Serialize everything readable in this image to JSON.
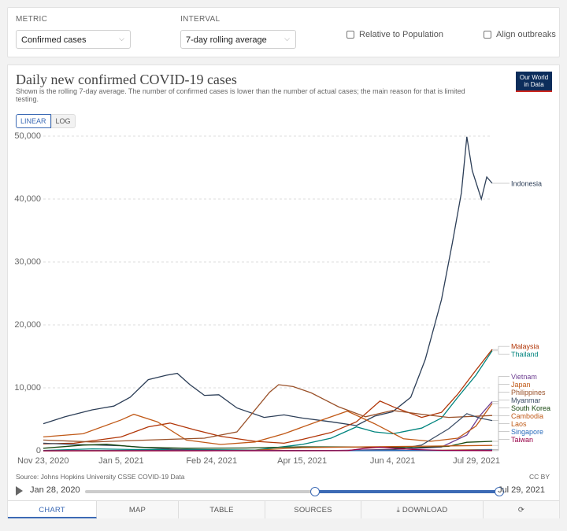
{
  "controls": {
    "metric_label": "METRIC",
    "metric_value": "Confirmed cases",
    "interval_label": "INTERVAL",
    "interval_value": "7-day rolling average",
    "relative_label": "Relative to Population",
    "align_label": "Align outbreaks"
  },
  "chart": {
    "title": "Daily new confirmed COVID-19 cases",
    "subtitle": "Shown is the rolling 7-day average. The number of confirmed cases is lower than the number of actual cases; the main reason for that is limited testing.",
    "logo_line1": "Our World",
    "logo_line2": "in Data",
    "linear_label": "LINEAR",
    "log_label": "LOG",
    "source": "Source: Johns Hopkins University CSSE COVID-19 Data",
    "license": "CC BY"
  },
  "timeline": {
    "start_label": "Jan 28, 2020",
    "end_label": "Jul 29, 2021",
    "selected_from": "Nov 23, 2020",
    "selected_to": "Jul 29, 2021"
  },
  "tabs": [
    "CHART",
    "MAP",
    "TABLE",
    "SOURCES",
    "DOWNLOAD",
    ""
  ],
  "chart_data": {
    "type": "line",
    "title": "Daily new confirmed COVID-19 cases",
    "xlabel": "",
    "ylabel": "",
    "x_ticks": [
      "Nov 23, 2020",
      "Jan 5, 2021",
      "Feb 24, 2021",
      "Apr 15, 2021",
      "Jun 4, 2021",
      "Jul 29, 2021"
    ],
    "y_ticks": [
      "0",
      "10,000",
      "20,000",
      "30,000",
      "40,000",
      "50,000"
    ],
    "ylim": [
      0,
      50000
    ],
    "xlim": [
      "2020-11-23",
      "2021-07-29"
    ],
    "grid": true,
    "legend": "right-end labels",
    "series": [
      {
        "name": "Indonesia",
        "color": "#2c3e57",
        "points": [
          [
            "2020-11-23",
            4300
          ],
          [
            "2020-12-05",
            5400
          ],
          [
            "2020-12-20",
            6500
          ],
          [
            "2021-01-01",
            7100
          ],
          [
            "2021-01-10",
            8500
          ],
          [
            "2021-01-20",
            11300
          ],
          [
            "2021-01-30",
            12000
          ],
          [
            "2021-02-05",
            12300
          ],
          [
            "2021-02-12",
            10500
          ],
          [
            "2021-02-20",
            8800
          ],
          [
            "2021-02-28",
            8900
          ],
          [
            "2021-03-10",
            6800
          ],
          [
            "2021-03-25",
            5300
          ],
          [
            "2021-04-05",
            5700
          ],
          [
            "2021-04-15",
            5200
          ],
          [
            "2021-05-01",
            4600
          ],
          [
            "2021-05-15",
            4000
          ],
          [
            "2021-05-25",
            5500
          ],
          [
            "2021-06-04",
            6200
          ],
          [
            "2021-06-14",
            8500
          ],
          [
            "2021-06-22",
            14500
          ],
          [
            "2021-07-01",
            24000
          ],
          [
            "2021-07-07",
            33000
          ],
          [
            "2021-07-12",
            41000
          ],
          [
            "2021-07-15",
            49900
          ],
          [
            "2021-07-18",
            44500
          ],
          [
            "2021-07-23",
            40000
          ],
          [
            "2021-07-26",
            43500
          ],
          [
            "2021-07-29",
            42500
          ]
        ]
      },
      {
        "name": "Malaysia",
        "color": "#b13507",
        "points": [
          [
            "2020-11-23",
            1100
          ],
          [
            "2020-12-10",
            1200
          ],
          [
            "2021-01-05",
            2200
          ],
          [
            "2021-01-20",
            3800
          ],
          [
            "2021-02-01",
            4400
          ],
          [
            "2021-02-15",
            3300
          ],
          [
            "2021-03-01",
            2300
          ],
          [
            "2021-03-20",
            1500
          ],
          [
            "2021-04-05",
            1200
          ],
          [
            "2021-04-15",
            1800
          ],
          [
            "2021-05-01",
            2900
          ],
          [
            "2021-05-15",
            4600
          ],
          [
            "2021-05-28",
            7900
          ],
          [
            "2021-06-05",
            6900
          ],
          [
            "2021-06-20",
            5300
          ],
          [
            "2021-07-01",
            6100
          ],
          [
            "2021-07-10",
            9000
          ],
          [
            "2021-07-20",
            12800
          ],
          [
            "2021-07-29",
            16100
          ]
        ]
      },
      {
        "name": "Thailand",
        "color": "#00847e",
        "points": [
          [
            "2020-11-23",
            50
          ],
          [
            "2020-12-20",
            300
          ],
          [
            "2021-01-10",
            200
          ],
          [
            "2021-02-10",
            200
          ],
          [
            "2021-03-20",
            100
          ],
          [
            "2021-04-15",
            1000
          ],
          [
            "2021-05-01",
            2000
          ],
          [
            "2021-05-15",
            3800
          ],
          [
            "2021-05-25",
            3000
          ],
          [
            "2021-06-04",
            2700
          ],
          [
            "2021-06-20",
            3600
          ],
          [
            "2021-07-01",
            5200
          ],
          [
            "2021-07-10",
            8500
          ],
          [
            "2021-07-20",
            12000
          ],
          [
            "2021-07-29",
            15900
          ]
        ]
      },
      {
        "name": "Vietnam",
        "color": "#6d3e91",
        "points": [
          [
            "2020-11-23",
            5
          ],
          [
            "2021-01-28",
            40
          ],
          [
            "2021-03-01",
            20
          ],
          [
            "2021-05-01",
            30
          ],
          [
            "2021-06-10",
            250
          ],
          [
            "2021-07-01",
            600
          ],
          [
            "2021-07-15",
            2500
          ],
          [
            "2021-07-22",
            5500
          ],
          [
            "2021-07-29",
            7800
          ]
        ]
      },
      {
        "name": "Japan",
        "color": "#c05917",
        "points": [
          [
            "2020-11-23",
            2200
          ],
          [
            "2020-12-15",
            2700
          ],
          [
            "2021-01-05",
            4900
          ],
          [
            "2021-01-12",
            5800
          ],
          [
            "2021-01-25",
            4600
          ],
          [
            "2021-02-10",
            1700
          ],
          [
            "2021-03-01",
            1000
          ],
          [
            "2021-03-20",
            1400
          ],
          [
            "2021-04-05",
            2700
          ],
          [
            "2021-04-25",
            4800
          ],
          [
            "2021-05-10",
            6300
          ],
          [
            "2021-05-25",
            4300
          ],
          [
            "2021-06-10",
            1900
          ],
          [
            "2021-06-25",
            1500
          ],
          [
            "2021-07-10",
            2000
          ],
          [
            "2021-07-20",
            3900
          ],
          [
            "2021-07-29",
            7500
          ]
        ]
      },
      {
        "name": "Philippines",
        "color": "#9a5129",
        "points": [
          [
            "2020-11-23",
            1700
          ],
          [
            "2020-12-20",
            1400
          ],
          [
            "2021-01-20",
            1700
          ],
          [
            "2021-02-20",
            2000
          ],
          [
            "2021-03-10",
            3000
          ],
          [
            "2021-03-28",
            9300
          ],
          [
            "2021-04-02",
            10500
          ],
          [
            "2021-04-10",
            10200
          ],
          [
            "2021-04-20",
            9200
          ],
          [
            "2021-05-05",
            7000
          ],
          [
            "2021-05-20",
            5400
          ],
          [
            "2021-06-04",
            6400
          ],
          [
            "2021-06-20",
            5800
          ],
          [
            "2021-07-05",
            5300
          ],
          [
            "2021-07-29",
            5600
          ]
        ]
      },
      {
        "name": "Myanmar",
        "color": "#3c4e66",
        "points": [
          [
            "2020-11-23",
            1200
          ],
          [
            "2020-12-10",
            1000
          ],
          [
            "2021-01-05",
            800
          ],
          [
            "2021-01-25",
            400
          ],
          [
            "2021-02-10",
            100
          ],
          [
            "2021-03-15",
            20
          ],
          [
            "2021-05-15",
            40
          ],
          [
            "2021-06-04",
            150
          ],
          [
            "2021-06-20",
            900
          ],
          [
            "2021-07-05",
            3500
          ],
          [
            "2021-07-15",
            5900
          ],
          [
            "2021-07-22",
            5200
          ],
          [
            "2021-07-29",
            4800
          ]
        ]
      },
      {
        "name": "South Korea",
        "color": "#18470f",
        "points": [
          [
            "2020-11-23",
            400
          ],
          [
            "2020-12-15",
            900
          ],
          [
            "2020-12-28",
            1030
          ],
          [
            "2021-01-15",
            560
          ],
          [
            "2021-02-10",
            400
          ],
          [
            "2021-03-15",
            440
          ],
          [
            "2021-04-15",
            620
          ],
          [
            "2021-05-15",
            600
          ],
          [
            "2021-06-15",
            500
          ],
          [
            "2021-07-05",
            700
          ],
          [
            "2021-07-15",
            1350
          ],
          [
            "2021-07-29",
            1500
          ]
        ]
      },
      {
        "name": "Cambodia",
        "color": "#c05917",
        "points": [
          [
            "2020-11-23",
            1
          ],
          [
            "2021-02-20",
            5
          ],
          [
            "2021-03-20",
            80
          ],
          [
            "2021-04-15",
            500
          ],
          [
            "2021-05-15",
            600
          ],
          [
            "2021-06-15",
            700
          ],
          [
            "2021-07-29",
            850
          ]
        ]
      },
      {
        "name": "Laos",
        "color": "#be5915",
        "points": [
          [
            "2020-11-23",
            0
          ],
          [
            "2021-04-20",
            30
          ],
          [
            "2021-05-15",
            50
          ],
          [
            "2021-06-15",
            30
          ],
          [
            "2021-07-29",
            200
          ]
        ]
      },
      {
        "name": "Singapore",
        "color": "#286bbb",
        "points": [
          [
            "2020-11-23",
            10
          ],
          [
            "2021-02-01",
            30
          ],
          [
            "2021-04-15",
            25
          ],
          [
            "2021-05-20",
            30
          ],
          [
            "2021-07-15",
            60
          ],
          [
            "2021-07-29",
            150
          ]
        ]
      },
      {
        "name": "Taiwan",
        "color": "#970046",
        "points": [
          [
            "2020-11-23",
            5
          ],
          [
            "2021-05-10",
            10
          ],
          [
            "2021-05-20",
            400
          ],
          [
            "2021-05-28",
            560
          ],
          [
            "2021-06-15",
            200
          ],
          [
            "2021-07-01",
            60
          ],
          [
            "2021-07-29",
            20
          ]
        ]
      }
    ],
    "label_ypos_order": [
      "Indonesia",
      "Malaysia",
      "Thailand",
      "Vietnam",
      "Japan",
      "Philippines",
      "Myanmar",
      "South Korea",
      "Cambodia",
      "Laos",
      "Singapore",
      "Taiwan"
    ]
  }
}
